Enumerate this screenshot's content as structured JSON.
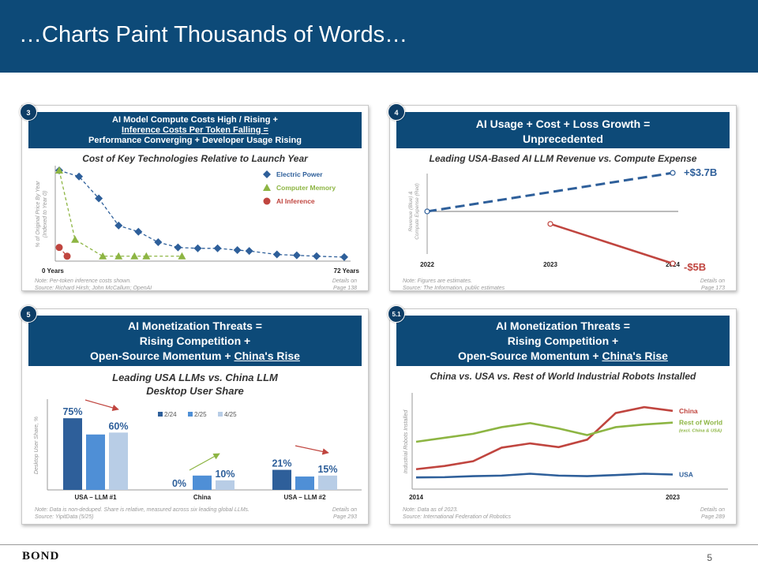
{
  "title": "…Charts Paint Thousands of Words…",
  "page_number": "5",
  "footer_logo": "BOND",
  "colors": {
    "navy": "#0d4a78",
    "blue": "#2e5f9a",
    "green": "#8db543",
    "red": "#c0453f",
    "mid_blue": "#4f8fd6",
    "light_blue": "#b8cde6"
  },
  "panels": {
    "p1": {
      "badge": "3",
      "header_lines": [
        "AI Model Compute Costs High / Rising +",
        "Inference Costs Per Token Falling =",
        "Performance Converging + Developer Usage Rising"
      ],
      "subtitle": "Cost of Key Technologies Relative to Launch Year",
      "note": [
        "Note: Per-token inference costs shown.",
        "Source: Richard Hirsh; John McCallum; OpenAI"
      ],
      "details": [
        "Details on",
        "Page 138"
      ]
    },
    "p2": {
      "badge": "4",
      "header_lines": [
        "AI Usage + Cost + Loss Growth =",
        "Unprecedented"
      ],
      "subtitle": "Leading USA-Based AI LLM Revenue vs. Compute Expense",
      "note": [
        "Note: Figures are estimates.",
        "Source: The Information, public estimates"
      ],
      "details": [
        "Details on",
        "Page 173"
      ]
    },
    "p3": {
      "badge": "5",
      "header_lines": [
        "AI Monetization Threats =",
        "Rising Competition +"
      ],
      "header_last_prefix": "Open-Source Momentum + ",
      "header_last_link": "China's Rise",
      "subtitle_lines": [
        "Leading USA LLMs vs. China LLM",
        "Desktop User Share"
      ],
      "note": [
        "Note: Data is non-deduped. Share is relative, measured across six leading global LLMs.",
        "Source: YipitData (5/25)"
      ],
      "details": [
        "Details on",
        "Page 293"
      ]
    },
    "p4": {
      "badge": "5.1",
      "header_lines": [
        "AI Monetization Threats =",
        "Rising Competition +"
      ],
      "header_last_prefix": "Open-Source Momentum + ",
      "header_last_link": "China's Rise",
      "subtitle": "China vs. USA vs. Rest of World Industrial Robots Installed",
      "note": [
        "Note: Data as of 2023.",
        "Source: International Federation of Robotics"
      ],
      "details": [
        "Details on",
        "Page 289"
      ]
    }
  },
  "chart_data": [
    {
      "id": "cost-of-technologies",
      "type": "line",
      "title": "Cost of Key Technologies Relative to Launch Year",
      "ylabel": "% of Original Price By Year (Indexed to Year 0)",
      "xlabel_start": "0 Years",
      "xlabel_end": "72 Years",
      "xlim": [
        0,
        72
      ],
      "ylim": [
        0,
        100
      ],
      "legend_position": "top-right",
      "series": [
        {
          "name": "Electric Power",
          "marker": "diamond",
          "color": "#2e5f9a",
          "x": [
            0,
            5,
            10,
            15,
            20,
            25,
            30,
            35,
            40,
            45,
            48,
            55,
            60,
            65,
            72
          ],
          "y": [
            100,
            93,
            68,
            37,
            30,
            18,
            12,
            11,
            11,
            9,
            8,
            4,
            3,
            2,
            1
          ]
        },
        {
          "name": "Computer Memory",
          "marker": "triangle",
          "color": "#8db543",
          "x": [
            0,
            4,
            11,
            15,
            19,
            22,
            31
          ],
          "y": [
            100,
            21,
            2,
            2,
            2,
            2,
            2
          ]
        },
        {
          "name": "AI Inference",
          "marker": "circle",
          "color": "#c0453f",
          "x": [
            0,
            2
          ],
          "y": [
            12,
            2
          ]
        }
      ]
    },
    {
      "id": "revenue-vs-compute",
      "type": "line",
      "title": "Leading USA-Based AI LLM Revenue vs. Compute Expense",
      "ylabel": "Revenue (Blue) & Compute Expense (Red)",
      "categories": [
        "2022",
        "2023",
        "2024"
      ],
      "ylim": [
        -6,
        4.5
      ],
      "series": [
        {
          "name": "Revenue",
          "color": "#2e5f9a",
          "style": "dashed",
          "x": [
            2022,
            2024
          ],
          "y": [
            0,
            3.7
          ],
          "end_label": "+$3.7B"
        },
        {
          "name": "Compute Expense",
          "color": "#c0453f",
          "style": "solid",
          "x": [
            2023,
            2024
          ],
          "y": [
            -1.2,
            -5
          ],
          "end_label": "-$5B"
        }
      ]
    },
    {
      "id": "desktop-user-share",
      "type": "bar",
      "title": "Leading USA LLMs vs. China LLM Desktop User Share",
      "ylabel": "Desktop User Share, %",
      "categories": [
        "USA – LLM #1",
        "China",
        "USA – LLM #2"
      ],
      "ylim": [
        0,
        90
      ],
      "series": [
        {
          "name": "2/24",
          "color": "#2e5f9a",
          "values": [
            75,
            0,
            21
          ]
        },
        {
          "name": "2/25",
          "color": "#4f8fd6",
          "values": [
            58,
            15,
            14
          ]
        },
        {
          "name": "4/25",
          "color": "#b8cde6",
          "values": [
            60,
            10,
            15
          ]
        }
      ],
      "data_labels": [
        {
          "category": 0,
          "series": 0,
          "text": "75%"
        },
        {
          "category": 0,
          "series": 2,
          "text": "60%"
        },
        {
          "category": 1,
          "series": 0,
          "text": "0%"
        },
        {
          "category": 1,
          "series": 2,
          "text": "10%"
        },
        {
          "category": 2,
          "series": 0,
          "text": "21%"
        },
        {
          "category": 2,
          "series": 2,
          "text": "15%"
        }
      ],
      "legend_position": "top-center"
    },
    {
      "id": "industrial-robots",
      "type": "line",
      "title": "China vs. USA vs. Rest of World Industrial Robots Installed",
      "ylabel": "Industrial Robots Installed",
      "x": [
        2014,
        2015,
        2016,
        2017,
        2018,
        2019,
        2020,
        2021,
        2022,
        2023
      ],
      "xlabel_start": "2014",
      "xlabel_end": "2023",
      "ylim": [
        0,
        320
      ],
      "series": [
        {
          "name": "China",
          "color": "#c0453f",
          "values": [
            57,
            69,
            87,
            138,
            154,
            140,
            168,
            268,
            290,
            276
          ]
        },
        {
          "name": "Rest of World",
          "sublabel": "(excl. China & USA)",
          "color": "#8db543",
          "values": [
            160,
            175,
            190,
            215,
            230,
            210,
            185,
            215,
            225,
            232
          ]
        },
        {
          "name": "USA",
          "color": "#2e5f9a",
          "values": [
            26,
            27,
            31,
            33,
            40,
            33,
            31,
            35,
            40,
            37
          ]
        }
      ]
    }
  ]
}
